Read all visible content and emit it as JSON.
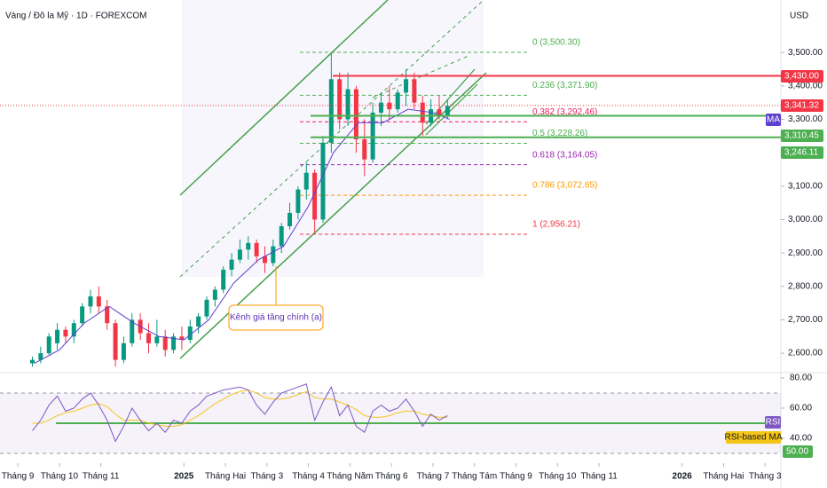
{
  "chart_data": {
    "type": "candlestick",
    "title": "Vàng / Đô la Mỹ · 1D · FOREXCOM",
    "currency": "USD",
    "ylim": [
      2510,
      3657
    ],
    "yticks": [
      {
        "value": 2600,
        "label": "2,600.00"
      },
      {
        "value": 2700,
        "label": "2,700.00"
      },
      {
        "value": 2800,
        "label": "2,800.00"
      },
      {
        "value": 2900,
        "label": "2,900.00"
      },
      {
        "value": 3000,
        "label": "3,000.00"
      },
      {
        "value": 3100,
        "label": "3,100.00"
      },
      {
        "value": 3300,
        "label": "3,300.00"
      },
      {
        "value": 3400,
        "label": "3,400.00"
      },
      {
        "value": 3500,
        "label": "3,500.00"
      }
    ],
    "xlim": [
      -0.43,
      18.38
    ],
    "xticks": [
      {
        "value": 0,
        "label": "Tháng 9"
      },
      {
        "value": 1,
        "label": "Tháng 10"
      },
      {
        "value": 2,
        "label": "Tháng 11"
      },
      {
        "value": 4,
        "label": "2025"
      },
      {
        "value": 5,
        "label": "Tháng Hai"
      },
      {
        "value": 6,
        "label": "Tháng 3"
      },
      {
        "value": 7,
        "label": "Tháng 4"
      },
      {
        "value": 8,
        "label": "Tháng Năm"
      },
      {
        "value": 9,
        "label": "Tháng 6"
      },
      {
        "value": 10,
        "label": "Tháng 7"
      },
      {
        "value": 11,
        "label": "Tháng Tám"
      },
      {
        "value": 12,
        "label": "Tháng 9"
      },
      {
        "value": 13,
        "label": "Tháng 10"
      },
      {
        "value": 14,
        "label": "Tháng 11"
      },
      {
        "value": 16,
        "label": "2026"
      },
      {
        "value": 17,
        "label": "Tháng Hai"
      },
      {
        "value": 18,
        "label": "Tháng 3"
      }
    ],
    "up_color": "#089981",
    "down_color": "#f23645",
    "candles": {
      "x": [
        0.35,
        0.55,
        0.75,
        0.95,
        1.15,
        1.35,
        1.55,
        1.75,
        1.95,
        2.15,
        2.35,
        2.55,
        2.75,
        2.95,
        3.15,
        3.35,
        3.55,
        3.75,
        3.95,
        4.15,
        4.35,
        4.55,
        4.75,
        4.95,
        5.15,
        5.35,
        5.55,
        5.75,
        5.95,
        6.15,
        6.35,
        6.55,
        6.75,
        6.95,
        7.15,
        7.35,
        7.55,
        7.75,
        7.95,
        8.15,
        8.35,
        8.55,
        8.75,
        8.95,
        9.15,
        9.35,
        9.55,
        9.75,
        9.95,
        10.15,
        10.35
      ],
      "open": [
        2570,
        2580,
        2600,
        2630,
        2670,
        2650,
        2690,
        2740,
        2770,
        2740,
        2690,
        2580,
        2630,
        2700,
        2660,
        2630,
        2650,
        2610,
        2650,
        2640,
        2680,
        2710,
        2760,
        2790,
        2850,
        2880,
        2910,
        2930,
        2890,
        2870,
        2920,
        2980,
        3020,
        3090,
        3140,
        3000,
        3230,
        3420,
        3300,
        3390,
        3240,
        3180,
        3320,
        3350,
        3330,
        3380,
        3420,
        3350,
        3290,
        3330,
        3310
      ],
      "high": [
        2590,
        2620,
        2660,
        2690,
        2680,
        2700,
        2750,
        2790,
        2800,
        2760,
        2700,
        2650,
        2720,
        2720,
        2690,
        2700,
        2670,
        2660,
        2680,
        2700,
        2720,
        2770,
        2800,
        2860,
        2900,
        2940,
        2950,
        2940,
        2920,
        2940,
        2990,
        3050,
        3100,
        3170,
        3150,
        3250,
        3500,
        3440,
        3440,
        3400,
        3300,
        3350,
        3380,
        3400,
        3390,
        3450,
        3440,
        3370,
        3360,
        3370,
        3360
      ],
      "low": [
        2560,
        2570,
        2595,
        2610,
        2630,
        2630,
        2680,
        2720,
        2720,
        2670,
        2560,
        2570,
        2620,
        2640,
        2600,
        2620,
        2590,
        2600,
        2610,
        2630,
        2660,
        2700,
        2740,
        2780,
        2830,
        2870,
        2880,
        2870,
        2840,
        2860,
        2900,
        2970,
        3000,
        3060,
        2960,
        2990,
        3200,
        3270,
        3280,
        3200,
        3130,
        3170,
        3280,
        3300,
        3320,
        3340,
        3330,
        3250,
        3280,
        3300,
        3300
      ],
      "close": [
        2580,
        2600,
        2650,
        2670,
        2650,
        2690,
        2740,
        2770,
        2740,
        2690,
        2580,
        2630,
        2700,
        2660,
        2630,
        2650,
        2610,
        2650,
        2640,
        2680,
        2710,
        2760,
        2790,
        2850,
        2880,
        2910,
        2930,
        2890,
        2870,
        2920,
        2980,
        3020,
        3090,
        3140,
        3000,
        3230,
        3420,
        3300,
        3390,
        3240,
        3180,
        3320,
        3350,
        3330,
        3380,
        3420,
        3350,
        3290,
        3330,
        3310,
        3340
      ]
    },
    "ma": {
      "name": "MA",
      "color": "#5b3fd0",
      "x": [
        0.4,
        1.0,
        1.6,
        2.2,
        2.8,
        3.4,
        4.0,
        4.6,
        5.2,
        5.8,
        6.4,
        7.0,
        7.6,
        8.2,
        8.8,
        9.4,
        10.0,
        10.4
      ],
      "values": [
        2570,
        2610,
        2690,
        2740,
        2690,
        2650,
        2640,
        2700,
        2810,
        2880,
        2920,
        3040,
        3200,
        3290,
        3290,
        3330,
        3320,
        3300
      ]
    },
    "fib_levels": [
      {
        "price": 3500.3,
        "label": "0 (3,500.30)",
        "color": "#4caf50"
      },
      {
        "price": 3371.9,
        "label": "0.236 (3,371.90)",
        "color": "#4caf50"
      },
      {
        "price": 3292.46,
        "label": "0.382 (3,292.46)",
        "color": "#e91e63"
      },
      {
        "price": 3228.26,
        "label": "0.5 (3,228.26)",
        "color": "#4caf50"
      },
      {
        "price": 3164.05,
        "label": "0.618 (3,164.05)",
        "color": "#9c27b0"
      },
      {
        "price": 3072.65,
        "label": "0.786 (3,072.65)",
        "color": "#ff9800"
      },
      {
        "price": 2956.21,
        "label": "1 (2,956.21)",
        "color": "#f23645"
      }
    ],
    "levels": [
      {
        "price": 3430,
        "label": "3,430.00",
        "color": "#f23645"
      },
      {
        "price": 3310.45,
        "label": "3,310.45",
        "color": "#4caf50"
      },
      {
        "price": 3246.11,
        "label": "3,246.11",
        "color": "#4caf50"
      }
    ],
    "last_price": {
      "price": 3341.32,
      "label": "3,341.32",
      "color": "#f23645"
    },
    "annotation": "Kênh giá tăng chính (a)",
    "rsi": {
      "name": "RSI",
      "color": "#7e57c2",
      "ma_name": "RSI-based MA",
      "ma_color": "#f5c518",
      "ylim": [
        24.7,
        84.7
      ],
      "yticks": [
        {
          "value": 40,
          "label": "40.00"
        },
        {
          "value": 60,
          "label": "60.00"
        },
        {
          "value": 80,
          "label": "80.00"
        }
      ],
      "bands": [
        30,
        70
      ],
      "level": {
        "value": 50,
        "label": "50.00",
        "color": "#4caf50"
      },
      "values": [
        45,
        52,
        62,
        68,
        58,
        60,
        66,
        70,
        62,
        52,
        38,
        48,
        60,
        52,
        45,
        50,
        44,
        52,
        50,
        58,
        62,
        68,
        70,
        72,
        73,
        74,
        72,
        62,
        56,
        64,
        70,
        72,
        74,
        76,
        52,
        64,
        74,
        55,
        62,
        48,
        44,
        58,
        62,
        58,
        60,
        66,
        58,
        48,
        56,
        52,
        55
      ],
      "ma_values": [
        50,
        50,
        52,
        55,
        57,
        58,
        60,
        62,
        63,
        61,
        56,
        52,
        52,
        52,
        50,
        49,
        48,
        48,
        49,
        52,
        55,
        59,
        63,
        66,
        69,
        71,
        72,
        70,
        67,
        66,
        66,
        67,
        69,
        71,
        67,
        66,
        66,
        64,
        62,
        59,
        55,
        54,
        54,
        55,
        57,
        58,
        58,
        56,
        55,
        54,
        54
      ]
    }
  }
}
